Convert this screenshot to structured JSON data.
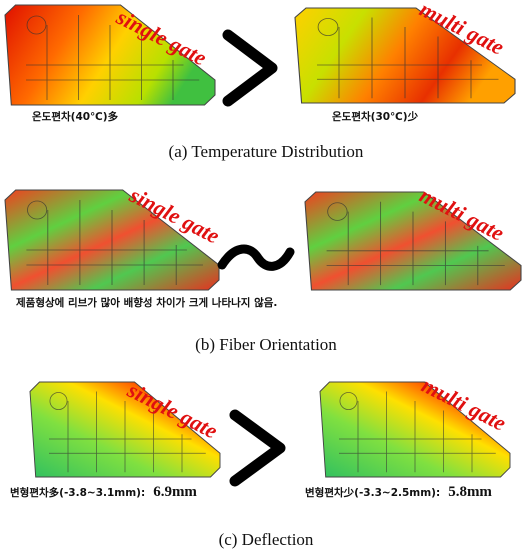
{
  "panels": [
    {
      "caption": "(a)  Temperature  Distribution",
      "left_label": "single gate",
      "right_label": "multi gate",
      "left_note": "온도편차(40℃)多",
      "right_note": "온도편차(30℃)少"
    },
    {
      "caption": "(b)  Fiber  Orientation",
      "left_label": "single gate",
      "right_label": "multi gate",
      "note": "제품형상에 리브가 많아 배향성 차이가 크게 나타나지 않음."
    },
    {
      "caption": "(c)  Deflection",
      "left_label": "single gate",
      "right_label": "multi gate",
      "left_note": "변형편차多(-3.8~3.1mm):",
      "left_value": "6.9mm",
      "right_note": "변형편차少(-3.3~2.5mm):",
      "right_value": "5.8mm"
    }
  ]
}
